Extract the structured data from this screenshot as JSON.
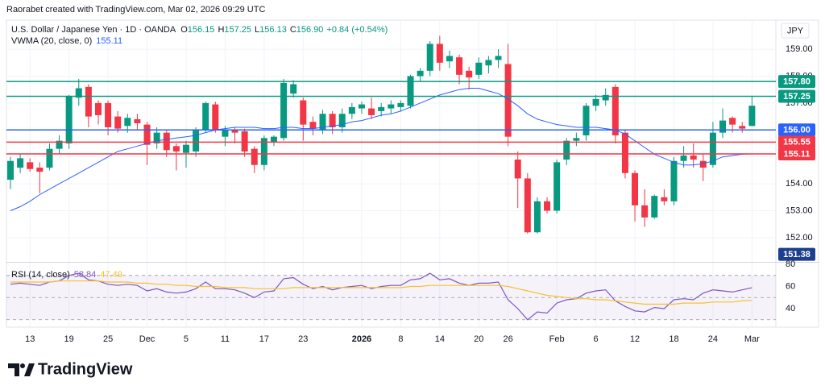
{
  "header": {
    "credit": "Raorabet created with TradingView.com, Mar 02, 2026 09:29 UTC",
    "logo": "TradingView"
  },
  "chart_data": [
    {
      "type": "candlestick",
      "title": "U.S. Dollar / Japanese Yen · 1D · OANDA",
      "currency": "JPY",
      "ohlc_keys": [
        "O",
        "H",
        "L",
        "C"
      ],
      "ohlc_labels": [
        "156.15",
        "157.25",
        "156.13",
        "156.90"
      ],
      "change": "+0.84 (+0.54%)",
      "categories": [
        null,
        null,
        "13",
        null,
        null,
        null,
        "19",
        null,
        null,
        null,
        "25",
        null,
        null,
        null,
        "Dec",
        null,
        null,
        null,
        "5",
        null,
        null,
        null,
        "11",
        null,
        null,
        null,
        "17",
        null,
        null,
        null,
        "23",
        null,
        null,
        null,
        null,
        null,
        "2026",
        null,
        null,
        null,
        "8",
        null,
        null,
        null,
        "14",
        null,
        null,
        null,
        "20",
        null,
        null,
        "26",
        null,
        null,
        null,
        null,
        "Feb",
        null,
        null,
        null,
        "6",
        null,
        null,
        null,
        "12",
        null,
        null,
        null,
        "18",
        null,
        null,
        null,
        "24",
        null,
        null,
        null,
        "Mar"
      ],
      "open": [
        154.15,
        154.6,
        154.8,
        154.6,
        154.6,
        155.3,
        155.5,
        157.2,
        157.6,
        157.0,
        157.0,
        156.5,
        156.15,
        156.4,
        156.2,
        155.5,
        155.9,
        155.4,
        155.15,
        155.2,
        156.0,
        156.95,
        155.75,
        156.0,
        155.95,
        155.3,
        154.7,
        155.55,
        155.7,
        157.35,
        157.1,
        156.3,
        156.0,
        156.6,
        156.1,
        156.6,
        156.8,
        156.8,
        156.7,
        156.8,
        156.85,
        156.9,
        158.0,
        158.2,
        159.2,
        158.55,
        158.7,
        158.2,
        158.05,
        158.4,
        158.6,
        158.45,
        154.9,
        154.2,
        152.2,
        153.35,
        153.0,
        154.9,
        155.6,
        155.8,
        156.9,
        157.1,
        157.6,
        155.9,
        154.4,
        153.2,
        152.75,
        153.5,
        153.35,
        154.85,
        155.05,
        154.85,
        154.7,
        155.9,
        156.45,
        156.15,
        156.15
      ],
      "high": [
        155.0,
        155.1,
        154.95,
        154.8,
        155.5,
        155.8,
        157.3,
        157.9,
        157.7,
        157.1,
        157.1,
        156.7,
        156.6,
        156.6,
        156.3,
        156.1,
        156.0,
        155.5,
        155.6,
        156.1,
        157.05,
        157.05,
        156.15,
        156.1,
        156.05,
        155.4,
        155.8,
        155.8,
        157.9,
        157.85,
        157.2,
        156.5,
        156.75,
        156.7,
        156.8,
        157.0,
        157.05,
        157.2,
        157.0,
        157.1,
        157.1,
        158.05,
        158.3,
        159.3,
        159.5,
        158.95,
        158.8,
        158.35,
        158.7,
        158.75,
        159.0,
        159.2,
        155.2,
        154.4,
        153.5,
        153.5,
        154.9,
        155.7,
        155.9,
        157.0,
        157.3,
        157.55,
        157.7,
        156.0,
        154.5,
        153.8,
        153.6,
        153.8,
        155.0,
        155.4,
        155.5,
        155.1,
        156.3,
        156.8,
        156.5,
        156.3,
        157.25
      ],
      "low": [
        153.8,
        154.4,
        154.45,
        153.65,
        154.5,
        155.1,
        155.3,
        156.9,
        156.1,
        156.2,
        155.8,
        155.9,
        155.9,
        156.0,
        154.7,
        155.3,
        155.0,
        154.5,
        154.6,
        155.0,
        155.9,
        155.9,
        155.4,
        155.5,
        155.0,
        154.4,
        154.5,
        155.4,
        155.6,
        157.2,
        155.6,
        155.8,
        155.85,
        155.85,
        155.9,
        156.4,
        156.6,
        156.4,
        156.5,
        156.6,
        156.7,
        156.8,
        157.8,
        158.0,
        158.2,
        158.3,
        157.7,
        157.5,
        157.9,
        158.1,
        158.3,
        155.4,
        153.1,
        152.15,
        152.15,
        152.9,
        152.9,
        154.7,
        155.4,
        155.6,
        156.7,
        156.9,
        155.5,
        154.2,
        152.6,
        152.4,
        152.7,
        153.2,
        153.2,
        154.6,
        154.6,
        154.1,
        154.6,
        155.7,
        155.9,
        155.9,
        156.13
      ],
      "close": [
        154.85,
        154.95,
        154.55,
        154.45,
        155.3,
        155.6,
        157.25,
        157.55,
        156.5,
        156.55,
        156.1,
        156.05,
        156.45,
        156.25,
        155.45,
        155.9,
        155.25,
        155.2,
        155.45,
        156.0,
        157.0,
        156.0,
        156.0,
        155.9,
        155.2,
        154.7,
        155.7,
        155.75,
        157.75,
        157.7,
        156.2,
        156.05,
        156.6,
        156.1,
        156.6,
        156.85,
        156.95,
        156.55,
        156.85,
        156.95,
        157.0,
        158.0,
        158.2,
        159.2,
        158.5,
        158.75,
        158.05,
        157.95,
        158.5,
        158.6,
        158.75,
        155.75,
        154.2,
        152.2,
        153.35,
        153.0,
        154.8,
        155.6,
        155.7,
        156.9,
        157.15,
        157.3,
        155.8,
        154.4,
        153.2,
        152.75,
        153.55,
        153.35,
        154.85,
        155.05,
        154.9,
        154.6,
        155.9,
        156.35,
        156.2,
        156.05,
        156.9
      ],
      "up_color": "#089981",
      "down_color": "#f23645",
      "series": [
        {
          "name": "VWMA (20, close, 0)",
          "color": "#2962ff",
          "values": [
            153.0,
            153.15,
            153.35,
            153.6,
            153.8,
            154.0,
            154.2,
            154.4,
            154.6,
            154.8,
            155.0,
            155.2,
            155.3,
            155.4,
            155.5,
            155.6,
            155.65,
            155.7,
            155.75,
            155.8,
            155.9,
            156.0,
            156.05,
            156.1,
            156.1,
            156.1,
            156.05,
            156.05,
            156.1,
            156.1,
            156.05,
            156.05,
            156.1,
            156.15,
            156.2,
            156.3,
            156.35,
            156.45,
            156.55,
            156.6,
            156.7,
            156.85,
            157.0,
            157.15,
            157.3,
            157.4,
            157.5,
            157.55,
            157.55,
            157.45,
            157.35,
            157.15,
            156.9,
            156.6,
            156.4,
            156.3,
            156.2,
            156.15,
            156.1,
            156.1,
            156.1,
            156.05,
            156.0,
            155.85,
            155.6,
            155.35,
            155.1,
            154.95,
            154.8,
            154.7,
            154.7,
            154.75,
            154.85,
            155.0,
            155.05,
            155.1,
            155.11
          ]
        }
      ],
      "ylim": [
        151.1,
        160.08
      ],
      "yticks": [
        {
          "value": 152,
          "label": "152.00"
        },
        {
          "value": 153,
          "label": "153.00"
        },
        {
          "value": 154,
          "label": "154.00"
        },
        {
          "value": 155,
          "label": "155.00"
        },
        {
          "value": 156,
          "label": "156.00"
        },
        {
          "value": 157,
          "label": "157.00"
        },
        {
          "value": 158,
          "label": "158.00"
        },
        {
          "value": 159,
          "label": "159.00"
        }
      ],
      "hlines": [
        {
          "value": 157.8,
          "label": "157.80",
          "color": "#089981"
        },
        {
          "value": 157.25,
          "label": "157.25",
          "color": "#089981"
        },
        {
          "value": 156,
          "label": "156.00",
          "color": "#2962ff"
        },
        {
          "value": 155.55,
          "label": "155.55",
          "color": "#f23645"
        },
        {
          "value": 155.11,
          "label": "155.11",
          "color": "#f23645"
        }
      ],
      "markers": [
        {
          "value": 151.38,
          "label": "151.38",
          "color": "#1e3f8f"
        }
      ],
      "grid": true
    },
    {
      "type": "line",
      "title": "RSI (14, close)",
      "series": [
        {
          "color": "#7e57c2",
          "values": [
            62,
            63,
            62,
            61,
            64,
            65,
            70,
            72,
            66,
            65,
            62,
            61,
            62,
            61,
            56,
            58,
            55,
            54,
            55,
            58,
            64,
            58,
            58,
            57,
            54,
            50,
            55,
            56,
            67,
            68,
            62,
            58,
            60,
            57,
            59,
            60,
            61,
            58,
            60,
            61,
            61,
            66,
            67,
            72,
            66,
            67,
            63,
            61,
            63,
            63,
            64,
            48,
            40,
            30,
            37,
            36,
            45,
            48,
            49,
            54,
            56,
            57,
            47,
            42,
            38,
            37,
            41,
            40,
            48,
            49,
            48,
            54,
            57,
            56,
            55,
            57,
            58.84
          ]
        },
        {
          "color": "#f7c12e",
          "values": [
            64,
            64,
            64,
            64,
            64,
            65,
            65,
            65,
            65,
            65,
            64,
            64,
            64,
            63,
            63,
            62,
            62,
            61,
            61,
            60,
            60,
            60,
            59,
            59,
            59,
            58,
            58,
            58,
            58,
            59,
            59,
            59,
            59,
            59,
            59,
            59,
            59,
            59,
            59,
            59,
            59,
            60,
            60,
            61,
            61,
            61,
            61,
            61,
            61,
            61,
            61,
            60,
            58,
            56,
            54,
            52,
            51,
            50,
            49,
            49,
            48,
            48,
            47,
            46,
            45,
            44,
            44,
            44,
            44,
            45,
            45,
            45,
            46,
            46,
            46,
            47,
            47.49
          ]
        }
      ],
      "ylim": [
        24,
        81.5
      ],
      "yticks": [
        40,
        60,
        80
      ],
      "levels": [
        30,
        50,
        70
      ],
      "band_color": "#7e57c2",
      "grid": true
    }
  ]
}
